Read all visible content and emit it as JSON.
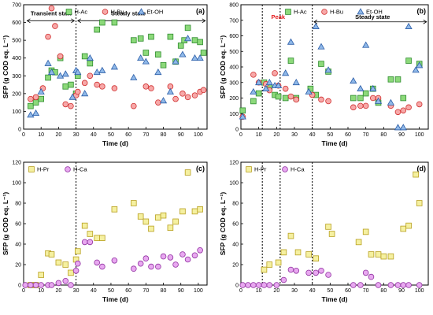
{
  "colors": {
    "h_ac": "#8cd97a",
    "h_ac_edge": "#2e8b2e",
    "h_bu": "#f7a8a8",
    "h_bu_edge": "#d03030",
    "et_oh": "#8fb8e8",
    "et_oh_edge": "#2c5ea8",
    "h_pr": "#f5f0a0",
    "h_pr_edge": "#b8a020",
    "h_ca": "#e8a8f0",
    "h_ca_edge": "#9030a0"
  },
  "chart_data": [
    {
      "id": "a",
      "type": "scatter",
      "panel_label": "(a)",
      "xlabel": "Time (d)",
      "ylabel": "SFP (g COD eq. L⁻¹)",
      "xlim": [
        0,
        105
      ],
      "ylim": [
        0,
        700
      ],
      "xticks": [
        0,
        10,
        20,
        30,
        40,
        50,
        60,
        70,
        80,
        90,
        100
      ],
      "yticks": [
        0,
        100,
        200,
        300,
        400,
        500,
        600,
        700
      ],
      "legend_position": "top-center",
      "vlines": [
        30
      ],
      "annotations": [
        {
          "text": "Transient state",
          "x": 4,
          "y": 640,
          "style": "bold"
        },
        {
          "text": "Steady state",
          "x": 50,
          "y": 640,
          "style": "bold"
        }
      ],
      "arrows": [
        {
          "from": 2,
          "to": 29,
          "y": 610
        },
        {
          "from": 31,
          "to": 104,
          "y": 610
        }
      ],
      "series": [
        {
          "name": "H-Ac",
          "marker": "square",
          "color_key": "h_ac",
          "x": [
            4,
            7,
            10,
            14,
            16,
            18,
            21,
            24,
            27,
            30,
            31,
            35,
            38,
            42,
            45,
            52,
            63,
            67,
            70,
            73,
            77,
            80,
            84,
            87,
            90,
            92,
            94,
            98,
            101,
            103
          ],
          "y": [
            130,
            150,
            170,
            290,
            330,
            320,
            400,
            240,
            250,
            200,
            300,
            410,
            370,
            560,
            600,
            600,
            500,
            510,
            430,
            520,
            420,
            360,
            520,
            380,
            470,
            500,
            570,
            500,
            490,
            430
          ]
        },
        {
          "name": "H-Bu",
          "marker": "circle",
          "color_key": "h_bu",
          "x": [
            4,
            7,
            11,
            14,
            16,
            18,
            21,
            24,
            27,
            30,
            31,
            35,
            38,
            42,
            45,
            52,
            63,
            70,
            73,
            77,
            84,
            87,
            91,
            94,
            98,
            101,
            103
          ],
          "y": [
            170,
            180,
            230,
            520,
            680,
            580,
            410,
            140,
            130,
            190,
            210,
            260,
            300,
            250,
            240,
            230,
            130,
            240,
            230,
            150,
            240,
            170,
            200,
            180,
            190,
            210,
            220
          ]
        },
        {
          "name": "Et-OH",
          "marker": "triangle",
          "color_key": "et_oh",
          "x": [
            4,
            7,
            10,
            14,
            16,
            21,
            24,
            28,
            30,
            31,
            35,
            38,
            42,
            45,
            52,
            63,
            67,
            70,
            77,
            80,
            84,
            87,
            91,
            94,
            98,
            101
          ],
          "y": [
            80,
            90,
            210,
            370,
            320,
            300,
            310,
            180,
            330,
            320,
            200,
            400,
            320,
            330,
            350,
            290,
            400,
            380,
            320,
            160,
            210,
            380,
            420,
            510,
            400,
            400
          ]
        }
      ]
    },
    {
      "id": "b",
      "type": "scatter",
      "panel_label": "(b)",
      "xlabel": "Time (d)",
      "ylabel": "SFP (g COD eq. L⁻¹)",
      "xlim": [
        0,
        105
      ],
      "ylim": [
        0,
        800
      ],
      "xticks": [
        0,
        10,
        20,
        30,
        40,
        50,
        60,
        70,
        80,
        90,
        100
      ],
      "yticks": [
        0,
        100,
        200,
        300,
        400,
        500,
        600,
        700,
        800
      ],
      "legend_position": "top-center",
      "vlines": [
        12,
        22,
        40
      ],
      "annotations": [
        {
          "text": "Peak",
          "x": 17,
          "y": 710,
          "style": "red"
        },
        {
          "text": "Steady state",
          "x": 64,
          "y": 710,
          "style": "bold"
        }
      ],
      "arrows": [
        {
          "from": 41,
          "to": 104,
          "y": 690
        }
      ],
      "series": [
        {
          "name": "H-Ac",
          "marker": "square",
          "color_key": "h_ac",
          "x": [
            1,
            7,
            10,
            13,
            16,
            19,
            21,
            25,
            28,
            31,
            39,
            42,
            45,
            49,
            63,
            67,
            70,
            74,
            77,
            84,
            88,
            91,
            94,
            100
          ],
          "y": [
            120,
            180,
            230,
            300,
            270,
            220,
            210,
            200,
            440,
            200,
            260,
            220,
            420,
            370,
            200,
            200,
            230,
            260,
            170,
            320,
            320,
            200,
            440,
            420
          ]
        },
        {
          "name": "H-Bu",
          "marker": "circle",
          "color_key": "h_bu",
          "x": [
            1,
            7,
            10,
            14,
            16,
            19,
            21,
            25,
            28,
            31,
            40,
            45,
            49,
            63,
            67,
            70,
            74,
            77,
            84,
            88,
            91,
            94,
            100
          ],
          "y": [
            80,
            350,
            300,
            290,
            250,
            360,
            280,
            260,
            210,
            190,
            220,
            190,
            180,
            140,
            150,
            150,
            200,
            200,
            150,
            110,
            120,
            140,
            160
          ]
        },
        {
          "name": "Et-OH",
          "marker": "triangle",
          "color_key": "et_oh",
          "x": [
            1,
            7,
            10,
            14,
            16,
            19,
            21,
            25,
            28,
            31,
            38,
            42,
            45,
            49,
            63,
            67,
            70,
            74,
            77,
            84,
            88,
            91,
            94,
            98,
            100
          ],
          "y": [
            80,
            240,
            300,
            260,
            300,
            280,
            280,
            360,
            560,
            300,
            240,
            660,
            530,
            380,
            310,
            260,
            540,
            260,
            180,
            170,
            10,
            10,
            660,
            380,
            410
          ]
        }
      ]
    },
    {
      "id": "c",
      "type": "scatter",
      "panel_label": "(c)",
      "xlabel": "Time (d)",
      "ylabel": "SFP (g COD eq. L⁻¹)",
      "xlim": [
        0,
        105
      ],
      "ylim": [
        0,
        120
      ],
      "xticks": [
        0,
        10,
        20,
        30,
        40,
        50,
        60,
        70,
        80,
        90,
        100
      ],
      "yticks": [
        0,
        20,
        40,
        60,
        80,
        100,
        120
      ],
      "legend_position": "top-left",
      "vlines": [
        30
      ],
      "annotations": [],
      "arrows": [],
      "series": [
        {
          "name": "H-Pr",
          "marker": "square",
          "color_key": "h_pr",
          "x": [
            4,
            7,
            10,
            14,
            16,
            20,
            24,
            27,
            30,
            31,
            35,
            38,
            42,
            45,
            52,
            63,
            67,
            70,
            73,
            77,
            80,
            84,
            87,
            91,
            94,
            98,
            101
          ],
          "y": [
            0,
            0,
            10,
            31,
            30,
            22,
            20,
            12,
            25,
            33,
            58,
            50,
            46,
            46,
            74,
            80,
            67,
            62,
            55,
            66,
            68,
            56,
            62,
            72,
            110,
            72,
            74
          ]
        },
        {
          "name": "H-Ca",
          "marker": "circle",
          "color_key": "h_ca",
          "x": [
            1,
            4,
            7,
            10,
            14,
            16,
            20,
            24,
            27,
            30,
            31,
            35,
            38,
            42,
            45,
            52,
            63,
            67,
            70,
            73,
            77,
            80,
            84,
            87,
            91,
            94,
            98,
            101
          ],
          "y": [
            0,
            0,
            0,
            0,
            0,
            0,
            2,
            4,
            0,
            14,
            21,
            42,
            42,
            22,
            18,
            24,
            16,
            21,
            26,
            18,
            18,
            28,
            27,
            20,
            30,
            25,
            29,
            34
          ]
        }
      ]
    },
    {
      "id": "d",
      "type": "scatter",
      "panel_label": "(d)",
      "xlabel": "Time (d)",
      "ylabel": "SFP (g COD eq. L⁻¹)",
      "xlim": [
        0,
        105
      ],
      "ylim": [
        0,
        120
      ],
      "xticks": [
        0,
        10,
        20,
        30,
        40,
        50,
        60,
        70,
        80,
        90,
        100
      ],
      "yticks": [
        0,
        20,
        40,
        60,
        80,
        100,
        120
      ],
      "legend_position": "top-left",
      "vlines": [
        12,
        22,
        40
      ],
      "annotations": [],
      "arrows": [],
      "series": [
        {
          "name": "H-Pr",
          "marker": "square",
          "color_key": "h_pr",
          "x": [
            13,
            16,
            21,
            24,
            28,
            32,
            38,
            42,
            49,
            51,
            66,
            70,
            73,
            77,
            80,
            84,
            91,
            94,
            98,
            100
          ],
          "y": [
            15,
            20,
            22,
            32,
            48,
            32,
            30,
            26,
            57,
            50,
            42,
            52,
            30,
            30,
            28,
            28,
            55,
            58,
            108,
            80
          ]
        },
        {
          "name": "H-Ca",
          "marker": "circle",
          "color_key": "h_ca",
          "x": [
            1,
            4,
            7,
            10,
            13,
            16,
            20,
            24,
            28,
            31,
            38,
            42,
            45,
            49,
            63,
            67,
            70,
            73,
            77,
            84,
            88,
            91,
            94,
            100
          ],
          "y": [
            0,
            0,
            0,
            0,
            0,
            0,
            0,
            5,
            15,
            14,
            12,
            12,
            14,
            10,
            0,
            0,
            12,
            8,
            0,
            0,
            0,
            0,
            0,
            0
          ]
        }
      ]
    }
  ]
}
